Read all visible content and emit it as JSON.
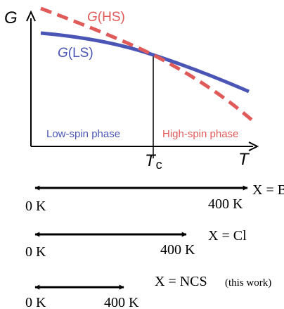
{
  "plot": {
    "axis_y_label": "G",
    "axis_x_label": "T",
    "tc_label_main": "T",
    "tc_label_sub": "c",
    "curve_hs_label": {
      "prefix": "G",
      "suffix": "(HS)"
    },
    "curve_ls_label": {
      "prefix": "G",
      "suffix": "(LS)"
    },
    "region_low_label": "Low-spin phase",
    "region_high_label": "High-spin phase",
    "colors": {
      "hs": "#e05a5a",
      "ls": "#4a55b5",
      "axis": "#000000"
    }
  },
  "ranges": [
    {
      "x_label": "X = Br",
      "start_label": "0 K",
      "end_label": "400 K",
      "note": ""
    },
    {
      "x_label": "X = Cl",
      "start_label": "0 K",
      "end_label": "400 K",
      "note": ""
    },
    {
      "x_label": "X = NCS",
      "start_label": "0 K",
      "end_label": "400 K",
      "note": "(this work)"
    }
  ]
}
